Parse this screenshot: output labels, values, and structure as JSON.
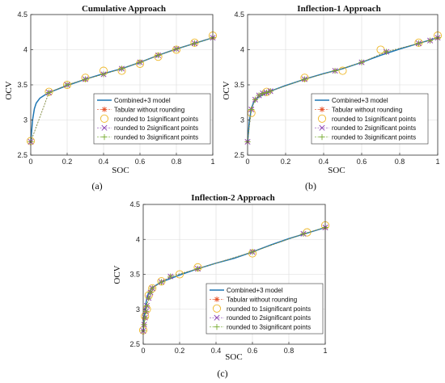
{
  "colors": {
    "model": "#1f77b4",
    "tabular": "#e8532a",
    "r1": "#eeb726",
    "r2": "#8a43b3",
    "r3": "#77ac30",
    "grid": "#dcdcdc",
    "axis": "#333333"
  },
  "legend_entries": [
    "Combined+3 model",
    "Tabular without rounding",
    "rounded to 1significant points",
    "rounded to 2significant points",
    "rounded to 3significant points"
  ],
  "chart_data": [
    {
      "type": "line",
      "title": "Cumulative Approach",
      "xlabel": "SOC",
      "ylabel": "OCV",
      "panel_label": "(a)",
      "xlim": [
        0,
        1
      ],
      "ylim": [
        2.5,
        4.5
      ],
      "xticks": [
        0,
        0.2,
        0.4,
        0.6,
        0.8,
        1
      ],
      "xtick_labels": [
        "0",
        "0.2",
        "0.4",
        "0.6",
        "0.8",
        "1"
      ],
      "yticks": [
        2.5,
        3,
        3.5,
        4,
        4.5
      ],
      "ytick_labels": [
        "2.5",
        "3",
        "3.5",
        "4",
        "4.5"
      ],
      "grid": true,
      "legend_position": "bottom-right",
      "series": [
        {
          "name": "Combined+3 model",
          "marker": "line",
          "x": [
            0,
            0.01,
            0.02,
            0.03,
            0.05,
            0.08,
            0.12,
            0.16,
            0.2,
            0.3,
            0.4,
            0.5,
            0.6,
            0.7,
            0.8,
            0.9,
            1.0
          ],
          "y": [
            2.68,
            3.0,
            3.16,
            3.24,
            3.31,
            3.36,
            3.41,
            3.45,
            3.49,
            3.58,
            3.66,
            3.73,
            3.82,
            3.92,
            4.01,
            4.09,
            4.17
          ]
        },
        {
          "name": "Tabular without rounding",
          "marker": "asterisk",
          "x": [
            0,
            0.1,
            0.2,
            0.3,
            0.4,
            0.5,
            0.6,
            0.7,
            0.8,
            0.9,
            1.0
          ],
          "y": [
            2.69,
            3.39,
            3.5,
            3.58,
            3.65,
            3.73,
            3.82,
            3.92,
            4.01,
            4.09,
            4.17
          ]
        },
        {
          "name": "rounded to 1significant points",
          "marker": "circle",
          "x": [
            0,
            0.1,
            0.2,
            0.3,
            0.4,
            0.5,
            0.6,
            0.7,
            0.8,
            0.9,
            1.0
          ],
          "y": [
            2.7,
            3.4,
            3.5,
            3.6,
            3.7,
            3.7,
            3.8,
            3.9,
            4.0,
            4.1,
            4.2
          ]
        },
        {
          "name": "rounded to 2significant points",
          "marker": "x",
          "x": [
            0,
            0.1,
            0.2,
            0.3,
            0.4,
            0.5,
            0.6,
            0.7,
            0.8,
            0.9,
            1.0
          ],
          "y": [
            2.69,
            3.39,
            3.5,
            3.58,
            3.65,
            3.73,
            3.82,
            3.92,
            4.01,
            4.09,
            4.17
          ]
        },
        {
          "name": "rounded to 3significant points",
          "marker": "plus",
          "x": [
            0,
            0.1,
            0.2,
            0.3,
            0.4,
            0.5,
            0.6,
            0.7,
            0.8,
            0.9,
            1.0
          ],
          "y": [
            2.69,
            3.39,
            3.5,
            3.58,
            3.65,
            3.73,
            3.82,
            3.92,
            4.01,
            4.09,
            4.17
          ]
        }
      ]
    },
    {
      "type": "line",
      "title": "Inflection-1 Approach",
      "xlabel": "SOC",
      "ylabel": "OCV",
      "panel_label": "(b)",
      "xlim": [
        0,
        1
      ],
      "ylim": [
        2.5,
        4.5
      ],
      "xticks": [
        0,
        0.2,
        0.4,
        0.6,
        0.8,
        1
      ],
      "xtick_labels": [
        "0",
        "0.2",
        "0.4",
        "0.6",
        "0.8",
        "1"
      ],
      "yticks": [
        2.5,
        3,
        3.5,
        4,
        4.5
      ],
      "ytick_labels": [
        "2.5",
        "3",
        "3.5",
        "4",
        "4.5"
      ],
      "grid": true,
      "legend_position": "bottom-right",
      "series": [
        {
          "name": "Combined+3 model",
          "marker": "line",
          "x": [
            0,
            0.01,
            0.02,
            0.03,
            0.05,
            0.08,
            0.12,
            0.16,
            0.2,
            0.3,
            0.4,
            0.5,
            0.6,
            0.7,
            0.8,
            0.9,
            1.0
          ],
          "y": [
            2.68,
            3.0,
            3.16,
            3.24,
            3.31,
            3.36,
            3.41,
            3.45,
            3.49,
            3.58,
            3.66,
            3.73,
            3.82,
            3.92,
            4.01,
            4.09,
            4.17
          ]
        },
        {
          "name": "Tabular without rounding",
          "marker": "asterisk",
          "x": [
            0,
            0.02,
            0.04,
            0.06,
            0.08,
            0.1,
            0.12,
            0.3,
            0.46,
            0.6,
            0.73,
            0.9,
            0.96,
            1.0
          ],
          "y": [
            2.69,
            3.15,
            3.29,
            3.35,
            3.38,
            3.39,
            3.41,
            3.58,
            3.7,
            3.82,
            3.97,
            4.09,
            4.13,
            4.17
          ]
        },
        {
          "name": "rounded to 1significant points",
          "marker": "circle",
          "x": [
            0.02,
            0.1,
            0.3,
            0.5,
            0.7,
            0.9,
            1.0
          ],
          "y": [
            3.1,
            3.4,
            3.6,
            3.7,
            4.0,
            4.1,
            4.2
          ]
        },
        {
          "name": "rounded to 2significant points",
          "marker": "x",
          "x": [
            0,
            0.02,
            0.04,
            0.06,
            0.08,
            0.1,
            0.12,
            0.3,
            0.46,
            0.6,
            0.73,
            0.9,
            0.96,
            1.0
          ],
          "y": [
            2.69,
            3.15,
            3.29,
            3.35,
            3.38,
            3.39,
            3.41,
            3.58,
            3.7,
            3.82,
            3.97,
            4.09,
            4.13,
            4.17
          ]
        },
        {
          "name": "rounded to 3significant points",
          "marker": "plus",
          "x": [
            0,
            0.02,
            0.04,
            0.06,
            0.08,
            0.1,
            0.12,
            0.3,
            0.46,
            0.6,
            0.73,
            0.9,
            0.96,
            1.0
          ],
          "y": [
            2.69,
            3.15,
            3.29,
            3.35,
            3.38,
            3.39,
            3.41,
            3.58,
            3.7,
            3.82,
            3.97,
            4.09,
            4.13,
            4.17
          ]
        }
      ]
    },
    {
      "type": "line",
      "title": "Inflection-2 Approach",
      "xlabel": "SOC",
      "ylabel": "OCV",
      "panel_label": "(c)",
      "xlim": [
        0,
        1
      ],
      "ylim": [
        2.5,
        4.5
      ],
      "xticks": [
        0,
        0.2,
        0.4,
        0.6,
        0.8,
        1
      ],
      "xtick_labels": [
        "0",
        "0.2",
        "0.4",
        "0.6",
        "0.8",
        "1"
      ],
      "yticks": [
        2.5,
        3,
        3.5,
        4,
        4.5
      ],
      "ytick_labels": [
        "2.5",
        "3",
        "3.5",
        "4",
        "4.5"
      ],
      "grid": true,
      "legend_position": "bottom-right",
      "series": [
        {
          "name": "Combined+3 model",
          "marker": "line",
          "x": [
            0,
            0.01,
            0.02,
            0.03,
            0.05,
            0.08,
            0.12,
            0.16,
            0.2,
            0.3,
            0.4,
            0.5,
            0.6,
            0.7,
            0.8,
            0.9,
            1.0
          ],
          "y": [
            2.68,
            3.0,
            3.16,
            3.24,
            3.31,
            3.36,
            3.41,
            3.45,
            3.49,
            3.58,
            3.66,
            3.73,
            3.82,
            3.92,
            4.01,
            4.09,
            4.17
          ]
        },
        {
          "name": "Tabular without rounding",
          "marker": "asterisk",
          "x": [
            0,
            0.005,
            0.01,
            0.015,
            0.02,
            0.03,
            0.04,
            0.05,
            0.1,
            0.15,
            0.3,
            0.6,
            0.88,
            1.0
          ],
          "y": [
            2.69,
            2.78,
            2.88,
            2.97,
            3.05,
            3.16,
            3.24,
            3.3,
            3.39,
            3.47,
            3.58,
            3.82,
            4.08,
            4.17
          ]
        },
        {
          "name": "rounded to 1significant points",
          "marker": "circle",
          "x": [
            0,
            0.01,
            0.02,
            0.03,
            0.05,
            0.1,
            0.2,
            0.3,
            0.6,
            0.9,
            1.0
          ],
          "y": [
            2.7,
            2.9,
            3.0,
            3.2,
            3.3,
            3.4,
            3.5,
            3.6,
            3.8,
            4.1,
            4.2
          ]
        },
        {
          "name": "rounded to 2significant points",
          "marker": "x",
          "x": [
            0,
            0.005,
            0.01,
            0.015,
            0.02,
            0.03,
            0.04,
            0.05,
            0.1,
            0.15,
            0.3,
            0.6,
            0.88,
            1.0
          ],
          "y": [
            2.69,
            2.78,
            2.88,
            2.97,
            3.05,
            3.16,
            3.24,
            3.3,
            3.39,
            3.47,
            3.58,
            3.82,
            4.08,
            4.17
          ]
        },
        {
          "name": "rounded to 3significant points",
          "marker": "plus",
          "x": [
            0,
            0.005,
            0.01,
            0.015,
            0.02,
            0.03,
            0.04,
            0.05,
            0.1,
            0.15,
            0.3,
            0.6,
            0.88,
            1.0
          ],
          "y": [
            2.69,
            2.78,
            2.88,
            2.97,
            3.05,
            3.16,
            3.24,
            3.3,
            3.39,
            3.47,
            3.58,
            3.82,
            4.08,
            4.17
          ]
        }
      ]
    }
  ]
}
